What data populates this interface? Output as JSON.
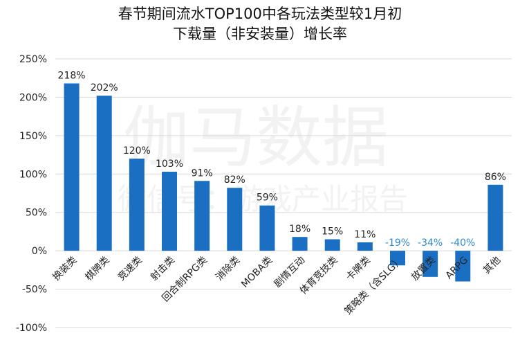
{
  "chart_data": {
    "type": "bar",
    "title_lines": [
      "春节期间流水TOP100中各玩法类型较1月初",
      "下载量（非安装量）增长率"
    ],
    "categories": [
      "换装类",
      "棋牌类",
      "竞速类",
      "射击类",
      "回合制RPG类",
      "消除类",
      "MOBA类",
      "剧情互动",
      "体育竞技类",
      "卡牌类",
      "策略类（含SLG）",
      "放置类",
      "ARPG",
      "其他"
    ],
    "values": [
      218,
      202,
      120,
      103,
      91,
      82,
      59,
      18,
      15,
      11,
      -19,
      -34,
      -40,
      86
    ],
    "data_labels": [
      "218%",
      "202%",
      "120%",
      "103%",
      "91%",
      "82%",
      "59%",
      "18%",
      "15%",
      "11%",
      "-19%",
      "-34%",
      "-40%",
      "86%"
    ],
    "y_ticks": [
      "250%",
      "200%",
      "150%",
      "100%",
      "50%",
      "0%",
      "-50%",
      "-100%"
    ],
    "ylim": [
      -100,
      250
    ],
    "xlabel": "",
    "ylabel": "",
    "grid": true,
    "bar_color": "#1B6FC2",
    "negative_label_color": "#2E8BD0",
    "watermark": [
      "伽马数据",
      "微信号：游戏产业报告"
    ]
  }
}
